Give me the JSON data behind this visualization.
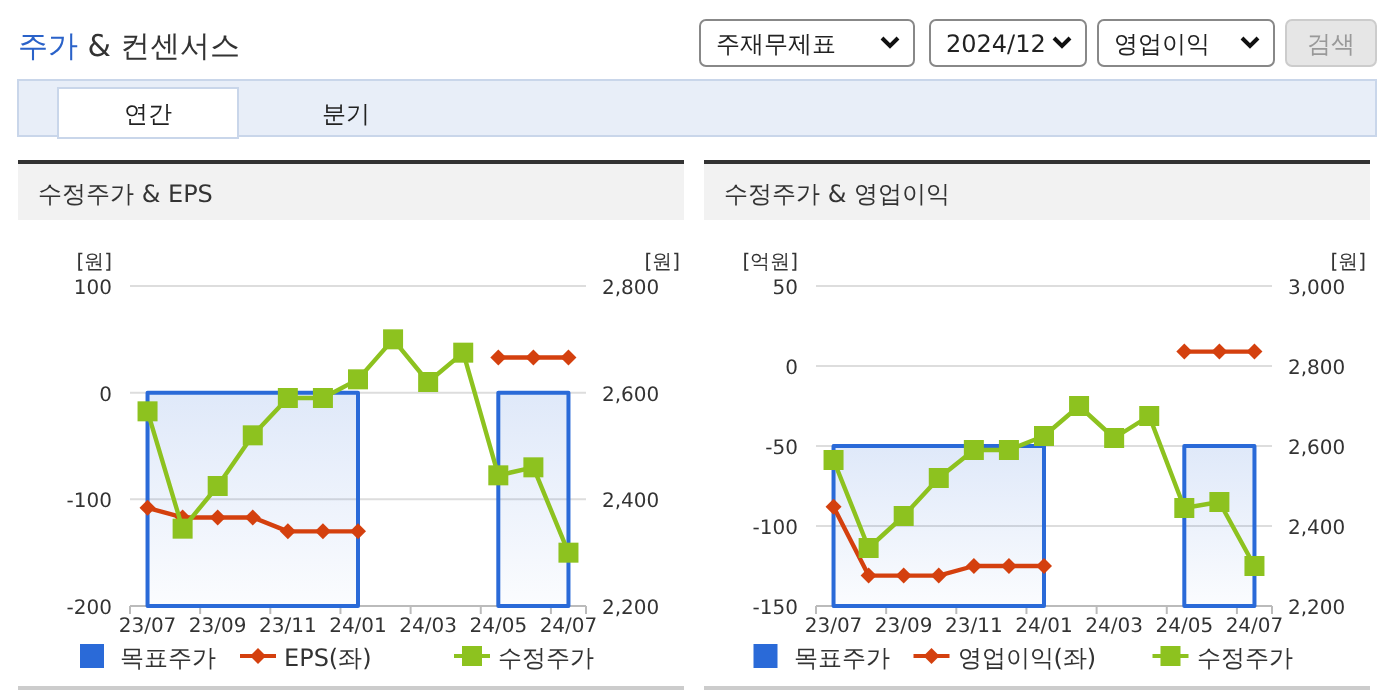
{
  "chart_data": [
    {
      "type": "other",
      "title": "주가 & 컨센서스",
      "annotations": [
        "주재무제표",
        "2024/12",
        "영업이익",
        "검색",
        "연간",
        "분기"
      ]
    },
    {
      "type": "line",
      "title": "수정주가 & EPS",
      "categories": [
        "23/07",
        null,
        "23/09",
        null,
        "23/11",
        null,
        "24/01",
        null,
        "24/03",
        null,
        "24/05",
        null,
        "24/07"
      ],
      "ylabel": "[원]",
      "y2label": "[원]",
      "ylim": [
        -200,
        100
      ],
      "yticks": [
        -200,
        -100,
        0,
        100
      ],
      "y2lim": [
        2200,
        2800
      ],
      "y2ticks": [
        {
          "value": 2200,
          "label": "2,200"
        },
        {
          "value": 2400,
          "label": "2,400"
        },
        {
          "value": 2600,
          "label": "2,600"
        },
        {
          "value": 2800,
          "label": "2,800"
        }
      ],
      "grid": "y",
      "legend": "bottom",
      "series": [
        {
          "name": "목표주가",
          "type": "area",
          "axis": "y2",
          "color": "#2a6ad8",
          "values": [
            2600,
            2600,
            2600,
            2600,
            2600,
            2600,
            2600,
            null,
            null,
            null,
            2600,
            2600,
            2600
          ]
        },
        {
          "name": "EPS(좌)",
          "type": "line",
          "marker": "diamond",
          "color": "#d4400e",
          "values": [
            -108,
            -117,
            -117,
            -117,
            -130,
            -130,
            -130,
            null,
            null,
            null,
            33,
            33,
            33
          ]
        },
        {
          "name": "수정주가",
          "type": "line",
          "marker": "square",
          "axis": "y2",
          "color": "#8dc21f",
          "values": [
            2565,
            2345,
            2425,
            2520,
            2590,
            2590,
            2625,
            2700,
            2620,
            2675,
            2445,
            2460,
            2300
          ]
        }
      ]
    },
    {
      "type": "line",
      "title": "수정주가 & 영업이익",
      "categories": [
        "23/07",
        null,
        "23/09",
        null,
        "23/11",
        null,
        "24/01",
        null,
        "24/03",
        null,
        "24/05",
        null,
        "24/07"
      ],
      "ylabel": "[억원]",
      "y2label": "[원]",
      "ylim": [
        -150,
        50
      ],
      "yticks": [
        -150,
        -100,
        -50,
        0,
        50
      ],
      "y2lim": [
        2200,
        3000
      ],
      "y2ticks": [
        {
          "value": 2200,
          "label": "2,200"
        },
        {
          "value": 2400,
          "label": "2,400"
        },
        {
          "value": 2600,
          "label": "2,600"
        },
        {
          "value": 2800,
          "label": "2,800"
        },
        {
          "value": 3000,
          "label": "3,000"
        }
      ],
      "grid": "y",
      "legend": "bottom",
      "series": [
        {
          "name": "목표주가",
          "type": "area",
          "axis": "y2",
          "color": "#2a6ad8",
          "values": [
            2600,
            2600,
            2600,
            2600,
            2600,
            2600,
            2600,
            null,
            null,
            null,
            2600,
            2600,
            2600
          ]
        },
        {
          "name": "영업이익(좌)",
          "type": "line",
          "marker": "diamond",
          "color": "#d4400e",
          "values": [
            -88,
            -131,
            -131,
            -131,
            -125,
            -125,
            -125,
            null,
            null,
            null,
            9,
            9,
            9
          ]
        },
        {
          "name": "수정주가",
          "type": "line",
          "marker": "square",
          "axis": "y2",
          "color": "#8dc21f",
          "values": [
            2565,
            2345,
            2425,
            2520,
            2590,
            2590,
            2625,
            2700,
            2620,
            2675,
            2445,
            2460,
            2300
          ]
        }
      ]
    }
  ]
}
